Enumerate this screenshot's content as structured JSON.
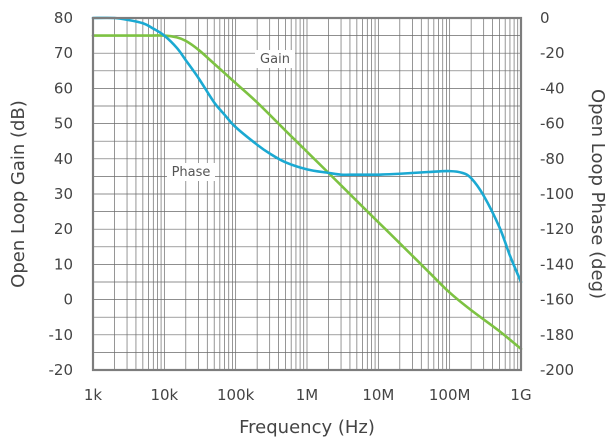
{
  "chart_data": {
    "type": "line",
    "xlabel": "Frequency (Hz)",
    "ylabel_left": "Open Loop Gain (dB)",
    "ylabel_right": "Open Loop Phase (deg)",
    "x_scale": "log",
    "xlim": [
      1000,
      1000000000
    ],
    "ylim_left": [
      -20,
      80
    ],
    "ylim_right": [
      -200,
      0
    ],
    "x_ticks": [
      {
        "value": 1000,
        "label": "1k"
      },
      {
        "value": 10000,
        "label": "10k"
      },
      {
        "value": 100000,
        "label": "100k"
      },
      {
        "value": 1000000,
        "label": "1M"
      },
      {
        "value": 10000000,
        "label": "10M"
      },
      {
        "value": 100000000,
        "label": "100M"
      },
      {
        "value": 1000000000,
        "label": "1G"
      }
    ],
    "y_ticks_left": [
      "80",
      "70",
      "60",
      "50",
      "40",
      "30",
      "20",
      "10",
      "0",
      "-10",
      "-20"
    ],
    "y_ticks_right": [
      "0",
      "-20",
      "-40",
      "-60",
      "-80",
      "-100",
      "-120",
      "-140",
      "-160",
      "-180",
      "-200"
    ],
    "grid": true,
    "series": [
      {
        "name": "Gain",
        "axis": "left",
        "color": "#7dc242",
        "x": [
          1000,
          2000,
          5000,
          10000,
          15000,
          20000,
          30000,
          50000,
          100000,
          200000,
          500000,
          1000000,
          2000000,
          5000000,
          10000000,
          20000000,
          50000000,
          100000000,
          200000000,
          500000000,
          1000000000
        ],
        "y": [
          75,
          75,
          75,
          75,
          74.5,
          73.5,
          71,
          67,
          61.5,
          56,
          48,
          42,
          36,
          28,
          22,
          16,
          8,
          2,
          -3,
          -9,
          -14
        ]
      },
      {
        "name": "Phase",
        "axis": "right",
        "color": "#1ba9d2",
        "x": [
          1000,
          2000,
          3000,
          5000,
          7000,
          10000,
          15000,
          20000,
          30000,
          50000,
          70000,
          100000,
          200000,
          300000,
          500000,
          1000000,
          2000000,
          3000000,
          5000000,
          10000000,
          20000000,
          50000000,
          100000000,
          150000000,
          200000000,
          300000000,
          500000000,
          700000000,
          1000000000
        ],
        "y": [
          0,
          0,
          -1,
          -3,
          -6,
          -10,
          -17,
          -24,
          -34,
          -48,
          -55,
          -62,
          -72,
          -77,
          -82,
          -86,
          -88,
          -89,
          -89,
          -89,
          -88.5,
          -87.5,
          -87,
          -88,
          -91,
          -101,
          -119,
          -135,
          -150
        ]
      }
    ],
    "annotations": [
      {
        "text": "Gain",
        "series": "Gain"
      },
      {
        "text": "Phase",
        "series": "Phase"
      }
    ]
  }
}
